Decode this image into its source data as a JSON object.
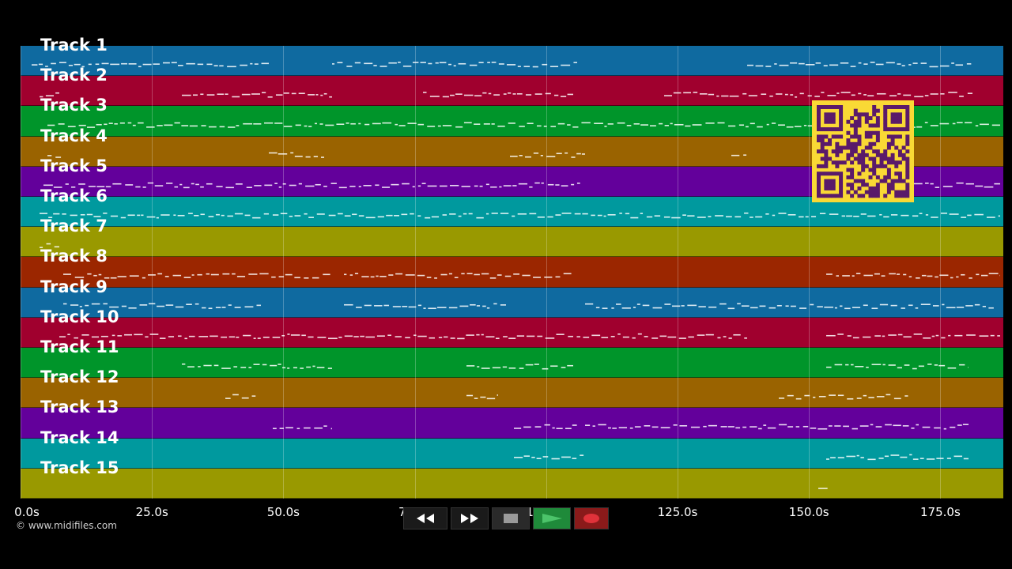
{
  "tracks": [
    {
      "label": "Track 1",
      "color": "#0f6aa0"
    },
    {
      "label": "Track 2",
      "color": "#a0002e"
    },
    {
      "label": "Track 3",
      "color": "#00952a"
    },
    {
      "label": "Track 4",
      "color": "#9a6300"
    },
    {
      "label": "Track 5",
      "color": "#63009b"
    },
    {
      "label": "Track 6",
      "color": "#00999e"
    },
    {
      "label": "Track 7",
      "color": "#999900"
    },
    {
      "label": "Track 8",
      "color": "#9b2600"
    },
    {
      "label": "Track 9",
      "color": "#0f6aa0"
    },
    {
      "label": "Track 10",
      "color": "#a0002e"
    },
    {
      "label": "Track 11",
      "color": "#00952a"
    },
    {
      "label": "Track 12",
      "color": "#9a6300"
    },
    {
      "label": "Track 13",
      "color": "#63009b"
    },
    {
      "label": "Track 14",
      "color": "#00999e"
    },
    {
      "label": "Track 15",
      "color": "#999900"
    }
  ],
  "timeline": {
    "ticks": [
      "0.0s",
      "25.0s",
      "50.0s",
      "75.0s",
      "100.0s",
      "125.0s",
      "150.0s",
      "175.0s"
    ]
  },
  "transport": {
    "rewind_icon": "rewind-icon",
    "fast_forward_icon": "fast-forward-icon",
    "stop_icon": "stop-icon",
    "play_icon": "play-icon",
    "record_icon": "record-icon",
    "play_color": "#1f8a3a",
    "record_color": "#8a1a1a"
  },
  "overlay": {
    "qr_color": "#f9d935",
    "qr_ink": "#5a1a6a"
  },
  "footer": {
    "copyright": "© www.midifiles.com"
  }
}
